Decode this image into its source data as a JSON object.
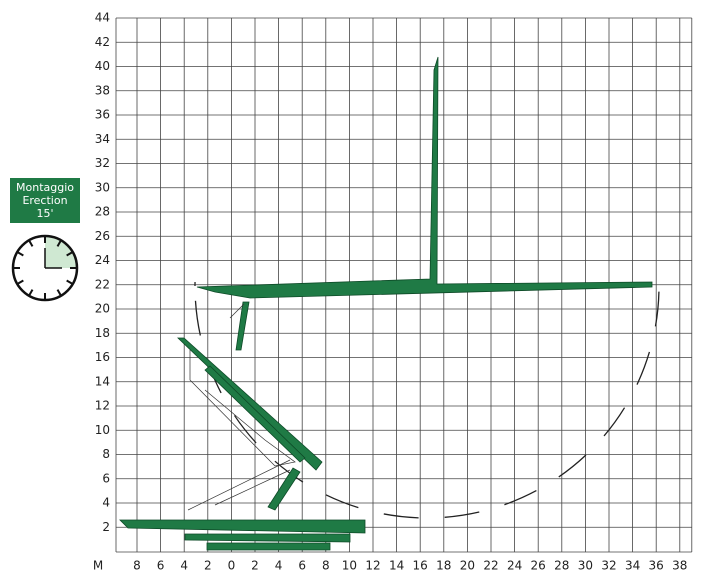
{
  "badge": {
    "lines": [
      "Montaggio",
      "Erection",
      "15'"
    ]
  },
  "y_axis": {
    "labels": [
      "44",
      "42",
      "40",
      "38",
      "36",
      "34",
      "32",
      "30",
      "28",
      "26",
      "24",
      "22",
      "20",
      "18",
      "16",
      "14",
      "12",
      "10",
      "8",
      "6",
      "4",
      "2"
    ]
  },
  "x_axis": {
    "unit": "M",
    "labels": [
      "8",
      "6",
      "4",
      "2",
      "0",
      "2",
      "4",
      "6",
      "8",
      "10",
      "12",
      "14",
      "16",
      "18",
      "20",
      "22",
      "24",
      "26",
      "28",
      "30",
      "32",
      "34",
      "36",
      "38"
    ]
  }
}
